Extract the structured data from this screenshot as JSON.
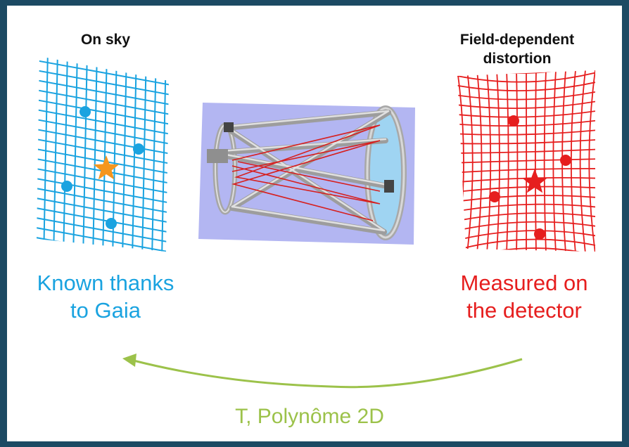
{
  "colors": {
    "sky": "#1aa3e0",
    "distortion": "#e61e1e",
    "star_orange": "#f5961e",
    "arrow": "#9cc24a",
    "frame": "#1c4a63",
    "telescope_bg": "#b3b6f2"
  },
  "left_panel": {
    "heading": "On sky",
    "caption": "Known thanks\nto Gaia"
  },
  "right_panel": {
    "heading": "Field-dependent\ndistortion",
    "caption": "Measured on\nthe detector"
  },
  "telescope": {
    "icon": "telescope-icon"
  },
  "transform": {
    "label": "T, Polynôme 2D"
  }
}
